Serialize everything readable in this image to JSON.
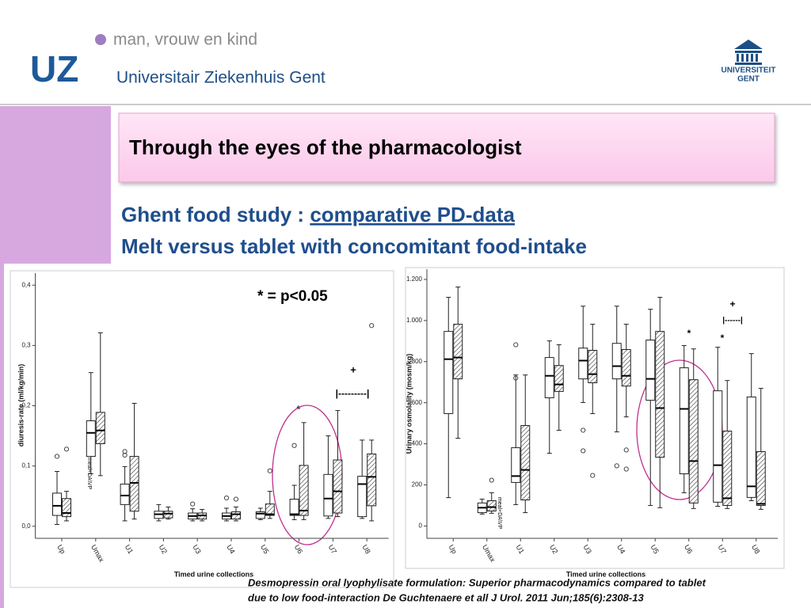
{
  "header": {
    "tagline": "man, vrouw en kind",
    "logo": "UZ",
    "hospital": "Universitair Ziekenhuis Gent",
    "university": [
      "UNIVERSITEIT",
      "GENT"
    ]
  },
  "slide": {
    "title": "Through the eyes of the pharmacologist",
    "subtitle_lead": "Ghent food study : ",
    "subtitle_link": "comparative PD-data",
    "subtitle_line2": "Melt versus tablet with concomitant food-intake",
    "citation": [
      "Desmopressin oral lyophylisate formulation: Superior pharmacodynamics compared to tablet",
      "due to low food-interaction De Guchtenaere et all  J Urol. 2011 Jun;185(6):2308-13"
    ]
  },
  "chart_data": [
    {
      "type": "box",
      "x_label": "Timed urine collections",
      "y_label": "diuresis-rate (ml/kg/min)",
      "annotations": [
        "* = p<0.05",
        "meal+DA\\VP",
        "*",
        "+",
        "|---------|"
      ],
      "categories": [
        "Up",
        "Umax",
        "U1",
        "U2",
        "U3",
        "U4",
        "U5",
        "U6",
        "U7",
        "U8"
      ],
      "ylim": [
        -0.02,
        0.42
      ],
      "yticks": [
        {
          "value": 0,
          "label": "0,0"
        },
        {
          "value": 0.1,
          "label": "0,1"
        },
        {
          "value": 0.2,
          "label": "0,2"
        },
        {
          "value": 0.3,
          "label": "0,3"
        },
        {
          "value": 0.4,
          "label": "0,4"
        }
      ],
      "series": [
        {
          "color": "#ffffff",
          "hatch": false,
          "boxes": [
            {
              "min": 0.003,
              "q1": 0.018,
              "median": 0.034,
              "q3": 0.055,
              "max": 0.091,
              "outliers": [
                0.116
              ]
            },
            {
              "min": 0.087,
              "q1": 0.116,
              "median": 0.155,
              "q3": 0.175,
              "max": 0.255,
              "outliers": []
            },
            {
              "min": 0.009,
              "q1": 0.036,
              "median": 0.051,
              "q3": 0.07,
              "max": 0.099,
              "outliers": [
                0.124,
                0.118
              ]
            },
            {
              "min": 0.009,
              "q1": 0.013,
              "median": 0.02,
              "q3": 0.025,
              "max": 0.036,
              "outliers": []
            },
            {
              "min": 0.009,
              "q1": 0.012,
              "median": 0.017,
              "q3": 0.022,
              "max": 0.029,
              "outliers": [
                0.037
              ]
            },
            {
              "min": 0.009,
              "q1": 0.012,
              "median": 0.017,
              "q3": 0.022,
              "max": 0.03,
              "outliers": [
                0.047
              ]
            },
            {
              "min": 0.011,
              "q1": 0.013,
              "median": 0.021,
              "q3": 0.024,
              "max": 0.03,
              "outliers": []
            },
            {
              "min": 0.011,
              "q1": 0.018,
              "median": 0.02,
              "q3": 0.045,
              "max": 0.068,
              "outliers": [
                0.134
              ]
            },
            {
              "min": 0.013,
              "q1": 0.017,
              "median": 0.046,
              "q3": 0.086,
              "max": 0.15,
              "outliers": []
            },
            {
              "min": 0.013,
              "q1": 0.016,
              "median": 0.07,
              "q3": 0.083,
              "max": 0.143,
              "outliers": []
            }
          ]
        },
        {
          "color": "#ffffff",
          "hatch": true,
          "boxes": [
            {
              "min": 0.009,
              "q1": 0.016,
              "median": 0.022,
              "q3": 0.046,
              "max": 0.058,
              "outliers": [
                0.128
              ]
            },
            {
              "min": 0.084,
              "q1": 0.137,
              "median": 0.159,
              "q3": 0.189,
              "max": 0.321,
              "outliers": []
            },
            {
              "min": 0.012,
              "q1": 0.025,
              "median": 0.072,
              "q3": 0.116,
              "max": 0.204,
              "outliers": []
            },
            {
              "min": 0.012,
              "q1": 0.014,
              "median": 0.021,
              "q3": 0.025,
              "max": 0.032,
              "outliers": []
            },
            {
              "min": 0.009,
              "q1": 0.012,
              "median": 0.018,
              "q3": 0.022,
              "max": 0.028,
              "outliers": []
            },
            {
              "min": 0.009,
              "q1": 0.012,
              "median": 0.02,
              "q3": 0.024,
              "max": 0.032,
              "outliers": [
                0.045
              ]
            },
            {
              "min": 0.013,
              "q1": 0.018,
              "median": 0.02,
              "q3": 0.037,
              "max": 0.058,
              "outliers": [
                0.092
              ]
            },
            {
              "min": 0.011,
              "q1": 0.018,
              "median": 0.026,
              "q3": 0.101,
              "max": 0.172,
              "outliers": []
            },
            {
              "min": 0.016,
              "q1": 0.022,
              "median": 0.058,
              "q3": 0.11,
              "max": 0.192,
              "outliers": []
            },
            {
              "min": 0.009,
              "q1": 0.034,
              "median": 0.082,
              "q3": 0.12,
              "max": 0.143,
              "outliers": [
                0.333
              ]
            }
          ]
        }
      ]
    },
    {
      "type": "box",
      "x_label": "Timed urine collections",
      "y_label": "Urinary osmolality (mosm/kg)",
      "annotations": [
        "meal+DA\\VP",
        "*",
        "*",
        "+",
        "|------|"
      ],
      "categories": [
        "Up",
        "Umax",
        "U1",
        "U2",
        "U3",
        "U4",
        "U5",
        "U6",
        "U7",
        "U8"
      ],
      "ylim": [
        -60,
        1250
      ],
      "yticks": [
        0,
        200,
        400,
        600,
        800,
        {
          "value": 1000,
          "label": "1.000"
        },
        {
          "value": 1200,
          "label": "1.200"
        }
      ],
      "series": [
        {
          "color": "#ffffff",
          "hatch": false,
          "boxes": [
            {
              "min": 138,
              "q1": 547,
              "median": 812,
              "q3": 947,
              "max": 1113,
              "outliers": []
            },
            {
              "min": 58,
              "q1": 65,
              "median": 89,
              "q3": 112,
              "max": 131,
              "outliers": []
            },
            {
              "min": 104,
              "q1": 212,
              "median": 243,
              "q3": 381,
              "max": 735,
              "outliers": [
                882,
                720
              ]
            },
            {
              "min": 354,
              "q1": 624,
              "median": 731,
              "q3": 820,
              "max": 901,
              "outliers": []
            },
            {
              "min": 601,
              "q1": 716,
              "median": 805,
              "q3": 866,
              "max": 1070,
              "outliers": [
                466,
                366
              ]
            },
            {
              "min": 458,
              "q1": 716,
              "median": 778,
              "q3": 889,
              "max": 1070,
              "outliers": [
                293
              ]
            },
            {
              "min": 100,
              "q1": 612,
              "median": 716,
              "q3": 905,
              "max": 1055,
              "outliers": []
            },
            {
              "min": 162,
              "q1": 254,
              "median": 570,
              "q3": 770,
              "max": 878,
              "outliers": []
            },
            {
              "min": 96,
              "q1": 116,
              "median": 296,
              "q3": 658,
              "max": 870,
              "outliers": []
            },
            {
              "min": 123,
              "q1": 139,
              "median": 193,
              "q3": 628,
              "max": 839,
              "outliers": []
            }
          ]
        },
        {
          "color": "#ffffff",
          "hatch": true,
          "boxes": [
            {
              "min": 427,
              "q1": 716,
              "median": 820,
              "q3": 982,
              "max": 1163,
              "outliers": []
            },
            {
              "min": 62,
              "q1": 73,
              "median": 92,
              "q3": 123,
              "max": 162,
              "outliers": [
                223
              ]
            },
            {
              "min": 65,
              "q1": 127,
              "median": 273,
              "q3": 489,
              "max": 735,
              "outliers": []
            },
            {
              "min": 466,
              "q1": 655,
              "median": 689,
              "q3": 781,
              "max": 882,
              "outliers": []
            },
            {
              "min": 547,
              "q1": 697,
              "median": 739,
              "q3": 855,
              "max": 982,
              "outliers": [
                246
              ]
            },
            {
              "min": 531,
              "q1": 681,
              "median": 731,
              "q3": 859,
              "max": 982,
              "outliers": [
                370,
                277
              ]
            },
            {
              "min": 89,
              "q1": 335,
              "median": 574,
              "q3": 947,
              "max": 1113,
              "outliers": []
            },
            {
              "min": 85,
              "q1": 112,
              "median": 316,
              "q3": 712,
              "max": 862,
              "outliers": []
            },
            {
              "min": 85,
              "q1": 100,
              "median": 135,
              "q3": 462,
              "max": 708,
              "outliers": []
            },
            {
              "min": 81,
              "q1": 100,
              "median": 108,
              "q3": 362,
              "max": 670,
              "outliers": []
            }
          ]
        }
      ]
    }
  ]
}
